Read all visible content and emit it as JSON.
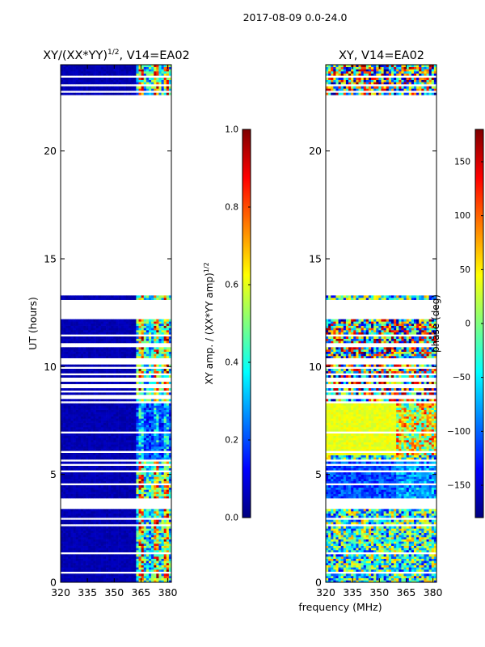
{
  "suptitle": "2017-08-09 0.0-24.0",
  "shared_xlabel": "frequency (MHz)",
  "colormap": [
    "#00007f",
    "#0000ff",
    "#007fff",
    "#00ffff",
    "#7fff7f",
    "#ffff00",
    "#ff7f00",
    "#ff0000",
    "#7f0000"
  ],
  "chart_data": [
    {
      "type": "heatmap",
      "title_prefix": "XY/(XX*YY)",
      "title_exponent": "1/2",
      "title_suffix": ", V14=EA02",
      "xlabel": "",
      "ylabel": "UT (hours)",
      "xlim": [
        320,
        382
      ],
      "ylim": [
        0,
        24
      ],
      "xticks": [
        320,
        335,
        350,
        365,
        380
      ],
      "yticks": [
        0,
        5,
        10,
        15,
        20
      ],
      "colorbar": {
        "label_prefix": "XY amp. / (XX*YY amp)",
        "label_exponent": "1/2",
        "range": [
          0.0,
          1.0
        ],
        "ticks": [
          "0.0",
          "0.2",
          "0.4",
          "0.6",
          "0.8",
          "1.0"
        ],
        "tick_values": [
          0.0,
          0.2,
          0.4,
          0.6,
          0.8,
          1.0
        ]
      },
      "note": "low amplitude (~0.05) over most of the band; elevated amplitude (0.3-1.0) in narrow channels near 362-382 MHz; no data between ~12.2 and ~22.6 h except a thin line at ~13.2 h"
    },
    {
      "type": "heatmap",
      "title": "XY, V14=EA02",
      "xlabel": "",
      "ylabel": "",
      "xlim": [
        320,
        382
      ],
      "ylim": [
        0,
        24
      ],
      "xticks": [
        320,
        335,
        350,
        365,
        380
      ],
      "yticks": [
        0,
        5,
        10,
        15,
        20
      ],
      "colorbar": {
        "label": "phase (deg)",
        "range": [
          -180,
          180
        ],
        "ticks": [
          "−150",
          "−100",
          "−50",
          "0",
          "50",
          "100",
          "150"
        ],
        "tick_values": [
          -150,
          -100,
          -50,
          0,
          50,
          100,
          150
        ]
      },
      "note": "phase noise spanning -180..180 deg; roughly +30 deg (yellow) band between 6 and 8.2 h; roughly -100 deg (blue) band between 4 and 5.6 h"
    }
  ]
}
